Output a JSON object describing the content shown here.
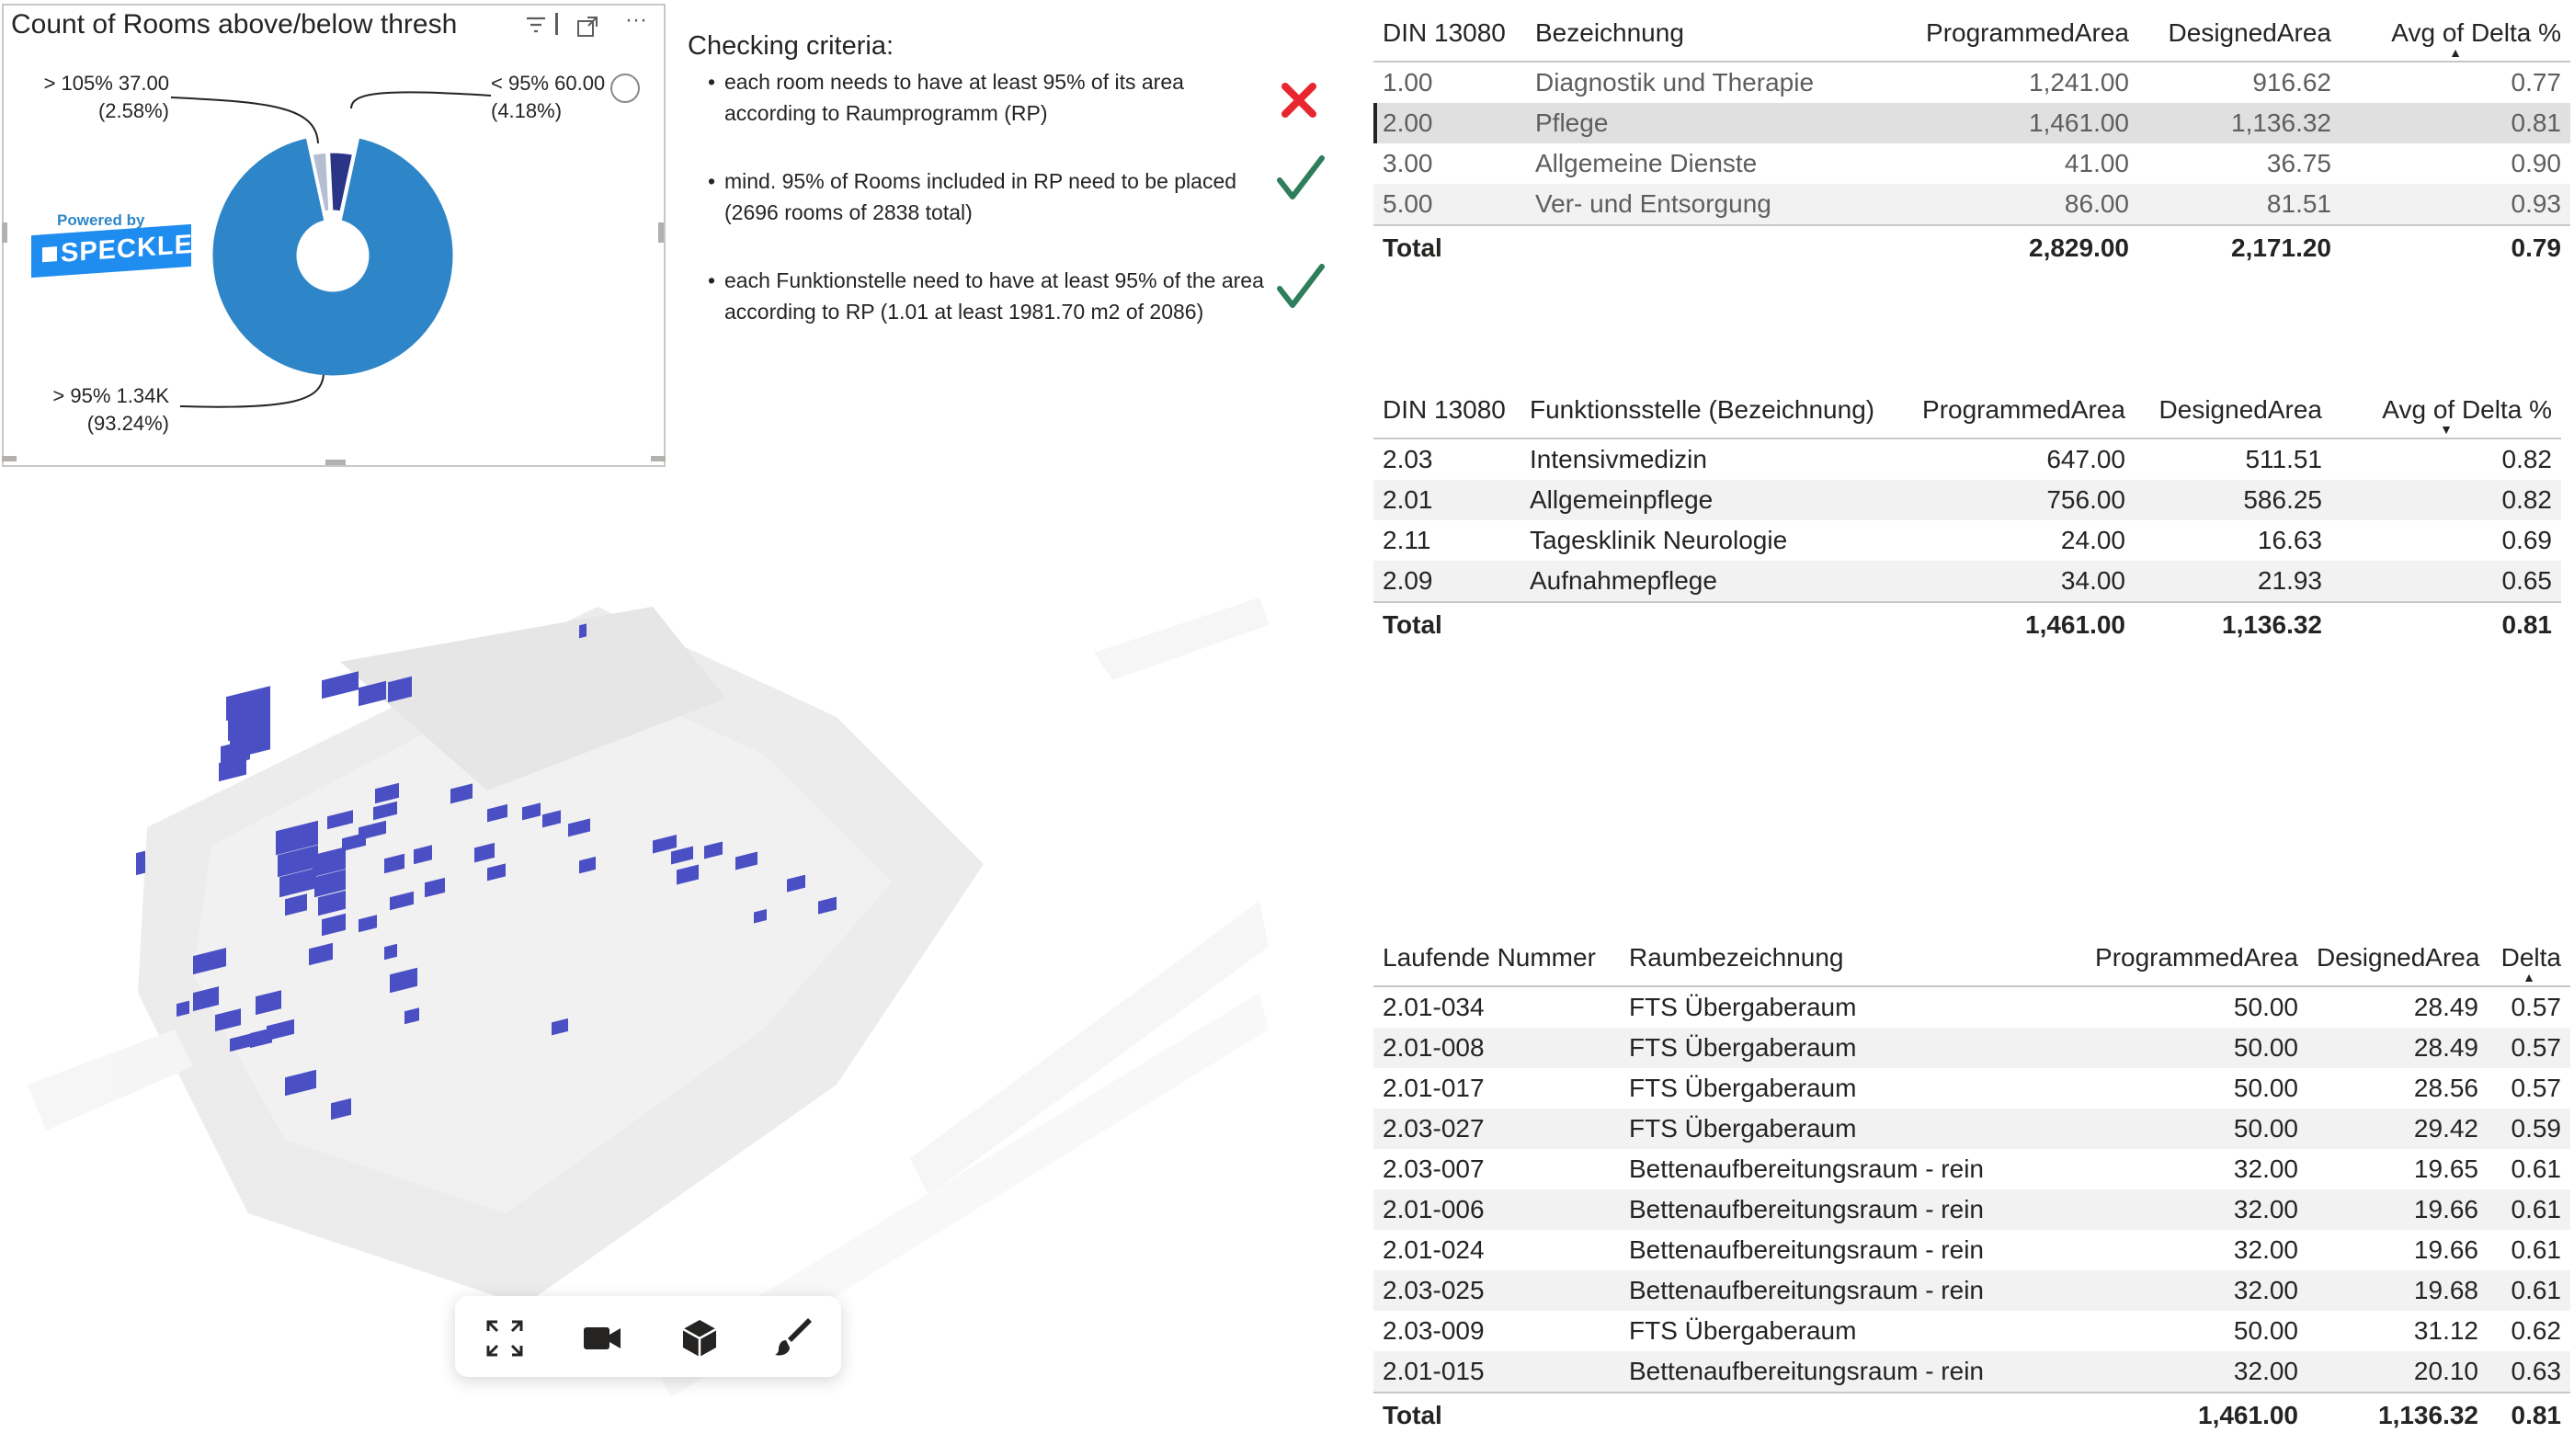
{
  "donut_card": {
    "title": "Count of Rooms above/below thresh",
    "icons": [
      "filter-icon",
      "focus-mode-icon",
      "more-options-icon"
    ],
    "more_label": "···",
    "logo": {
      "powered": "Powered by",
      "brand": "SPECKLE"
    },
    "slices": [
      {
        "label": "> 95%",
        "value_label": "1.34K",
        "pct": "(93.24%)",
        "color": "#2e86c8"
      },
      {
        "label": "< 95%",
        "value_label": "60.00",
        "pct": "(4.18%)",
        "color": "#2a3588"
      },
      {
        "label": "> 105%",
        "value_label": "37.00",
        "pct": "(2.58%)",
        "color": "#b3bed2"
      }
    ],
    "label_texts": {
      "a1": "> 105% 37.00",
      "a2": "(2.58%)",
      "b1": "< 95% 60.00",
      "b2": "(4.18%)",
      "c1": "> 95% 1.34K",
      "c2": "(93.24%)"
    }
  },
  "criteria": {
    "title": "Checking criteria:",
    "items": [
      {
        "text": "each room needs to have at least 95% of its area according to Raumprogramm (RP)",
        "status": "fail",
        "color": "#e8262f"
      },
      {
        "text": "mind. 95% of Rooms included in RP need to be placed (2696 rooms of 2838 total)",
        "status": "pass",
        "color": "#2e7d5b"
      },
      {
        "text": "each Funktionstelle need to have at least 95% of the area according to RP (1.01 at least 1981.70 m2 of 2086)",
        "status": "pass",
        "color": "#2e7d5b"
      }
    ]
  },
  "table1": {
    "headers": [
      "DIN 13080",
      "Bezeichnung",
      "ProgrammedArea",
      "DesignedArea",
      "Avg of Delta %"
    ],
    "rows": [
      [
        "1.00",
        "Diagnostik und Therapie",
        "1,241.00",
        "916.62",
        "0.77"
      ],
      [
        "2.00",
        "Pflege",
        "1,461.00",
        "1,136.32",
        "0.81"
      ],
      [
        "3.00",
        "Allgemeine Dienste",
        "41.00",
        "36.75",
        "0.90"
      ],
      [
        "5.00",
        "Ver- und Entsorgung",
        "86.00",
        "81.51",
        "0.93"
      ]
    ],
    "total": [
      "Total",
      "",
      "2,829.00",
      "2,171.20",
      "0.79"
    ],
    "selected_row": 1
  },
  "table2": {
    "headers": [
      "DIN 13080",
      "Funktionsstelle (Bezeichnung)",
      "ProgrammedArea",
      "DesignedArea",
      "Avg of Delta %"
    ],
    "rows": [
      [
        "2.03",
        "Intensivmedizin",
        "647.00",
        "511.51",
        "0.82"
      ],
      [
        "2.01",
        "Allgemeinpflege",
        "756.00",
        "586.25",
        "0.82"
      ],
      [
        "2.11",
        "Tagesklinik Neurologie",
        "24.00",
        "16.63",
        "0.69"
      ],
      [
        "2.09",
        "Aufnahmepflege",
        "34.00",
        "21.93",
        "0.65"
      ]
    ],
    "total": [
      "Total",
      "",
      "1,461.00",
      "1,136.32",
      "0.81"
    ]
  },
  "table3": {
    "headers": [
      "Laufende Nummer",
      "Raumbezeichnung",
      "ProgrammedArea",
      "DesignedArea",
      "Delta"
    ],
    "rows": [
      [
        "2.01-034",
        "FTS Übergaberaum",
        "50.00",
        "28.49",
        "0.57"
      ],
      [
        "2.01-008",
        "FTS Übergaberaum",
        "50.00",
        "28.49",
        "0.57"
      ],
      [
        "2.01-017",
        "FTS Übergaberaum",
        "50.00",
        "28.56",
        "0.57"
      ],
      [
        "2.03-027",
        "FTS Übergaberaum",
        "50.00",
        "29.42",
        "0.59"
      ],
      [
        "2.03-007",
        "Bettenaufbereitungsraum - rein",
        "32.00",
        "19.65",
        "0.61"
      ],
      [
        "2.01-006",
        "Bettenaufbereitungsraum - rein",
        "32.00",
        "19.66",
        "0.61"
      ],
      [
        "2.01-024",
        "Bettenaufbereitungsraum - rein",
        "32.00",
        "19.66",
        "0.61"
      ],
      [
        "2.03-025",
        "Bettenaufbereitungsraum - rein",
        "32.00",
        "19.68",
        "0.61"
      ],
      [
        "2.03-009",
        "FTS Übergaberaum",
        "50.00",
        "31.12",
        "0.62"
      ],
      [
        "2.01-015",
        "Bettenaufbereitungsraum - rein",
        "32.00",
        "20.10",
        "0.63"
      ]
    ],
    "total": [
      "Total",
      "",
      "1,461.00",
      "1,136.32",
      "0.81"
    ]
  },
  "viewer": {
    "toolbar": [
      "fullscreen-icon",
      "camera-icon",
      "cube-view-icon",
      "paint-brush-icon"
    ],
    "colors": {
      "room": "#4a4fc4",
      "ghost": "#d7d7d7"
    }
  }
}
